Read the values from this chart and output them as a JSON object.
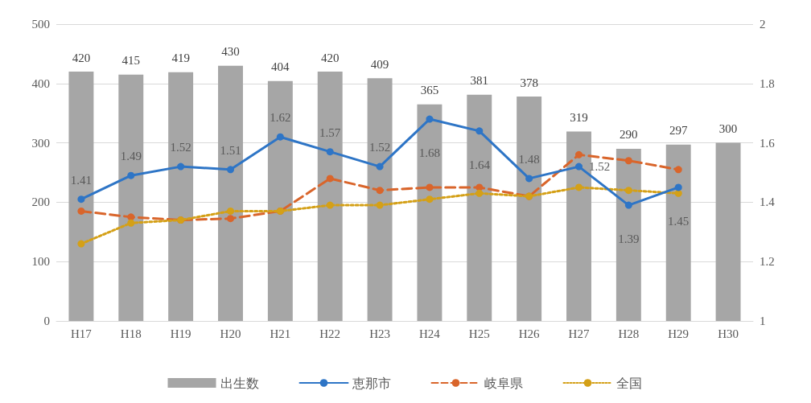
{
  "chart_data": {
    "type": "bar",
    "categories": [
      "H17",
      "H18",
      "H19",
      "H20",
      "H21",
      "H22",
      "H23",
      "H24",
      "H25",
      "H26",
      "H27",
      "H28",
      "H29",
      "H30"
    ],
    "series": [
      {
        "name": "出生数",
        "color": "#a6a6a6",
        "values": [
          420,
          415,
          419,
          430,
          404,
          420,
          409,
          365,
          381,
          378,
          319,
          290,
          297,
          300
        ],
        "data_labels": true
      },
      {
        "name": "恵那市",
        "type": "line",
        "axis": "y2",
        "color": "#2e75c6",
        "line_style": "solid",
        "marker": "circle",
        "values": [
          1.41,
          1.49,
          1.52,
          1.51,
          1.62,
          1.57,
          1.52,
          1.68,
          1.64,
          1.48,
          1.52,
          1.39,
          1.45,
          null
        ],
        "data_labels": true
      },
      {
        "name": "岐阜県",
        "type": "line",
        "axis": "y2",
        "color": "#d9652b",
        "line_style": "dashed",
        "marker": "circle",
        "values": [
          1.37,
          1.35,
          1.34,
          1.345,
          1.37,
          1.48,
          1.44,
          1.45,
          1.45,
          1.42,
          1.56,
          1.54,
          1.51,
          null
        ]
      },
      {
        "name": "全国",
        "type": "line",
        "axis": "y2",
        "color": "#d4a017",
        "line_style": "dotted",
        "marker": "circle",
        "values": [
          1.26,
          1.33,
          1.34,
          1.37,
          1.37,
          1.39,
          1.39,
          1.41,
          1.43,
          1.42,
          1.45,
          1.44,
          1.43,
          null
        ]
      }
    ],
    "ylim": [
      0,
      500
    ],
    "yticks": [
      0,
      100,
      200,
      300,
      400,
      500
    ],
    "y2lim": [
      1,
      2
    ],
    "y2ticks": [
      1,
      1.2,
      1.4,
      1.6,
      1.8,
      2
    ],
    "grid": "y",
    "legend": "bottom"
  }
}
